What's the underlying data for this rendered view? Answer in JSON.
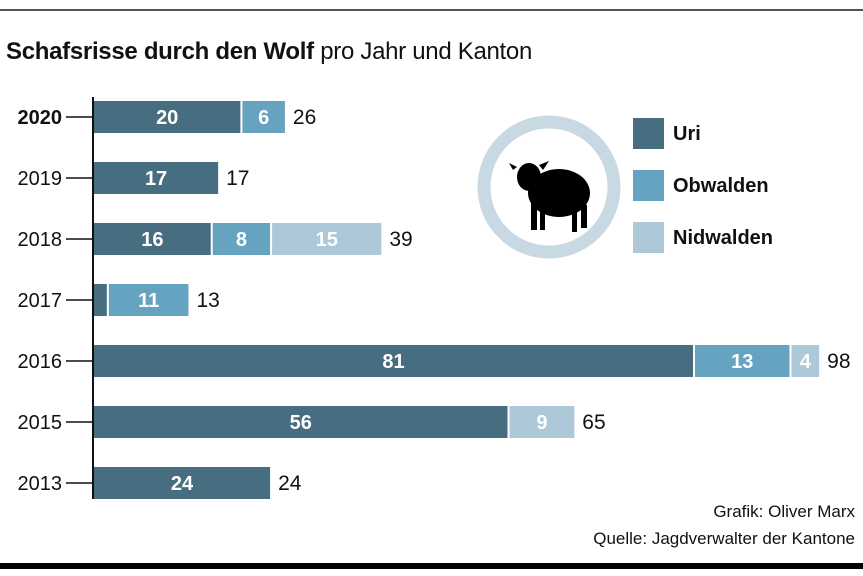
{
  "title": {
    "bold": "Schafsrisse durch den Wolf",
    "light": "pro Jahr und Kanton"
  },
  "legend": [
    {
      "name": "Uri",
      "color": "#476e80"
    },
    {
      "name": "Obwalden",
      "color": "#66a3c1"
    },
    {
      "name": "Nidwalden",
      "color": "#adc8d9"
    }
  ],
  "icon": "sheep-icon",
  "credits": {
    "grafik": "Grafik: Oliver Marx",
    "quelle": "Quelle: Jagdverwalter der Kantone"
  },
  "chart_data": {
    "type": "bar",
    "orientation": "horizontal",
    "stacked": true,
    "title": "Schafsrisse durch den Wolf pro Jahr und Kanton",
    "xlabel": "",
    "ylabel": "",
    "xlim": [
      0,
      98
    ],
    "grid": false,
    "legend_position": "top-right",
    "categories": [
      "2020",
      "2019",
      "2018",
      "2017",
      "2016",
      "2015",
      "2013"
    ],
    "highlight_category": "2020",
    "series": [
      {
        "name": "Uri",
        "values": [
          20,
          17,
          16,
          2,
          81,
          56,
          24
        ],
        "labels": [
          "20",
          "17",
          "16",
          "",
          "81",
          "56",
          "24"
        ]
      },
      {
        "name": "Obwalden",
        "values": [
          6,
          0,
          8,
          11,
          13,
          0,
          0
        ],
        "labels": [
          "6",
          "",
          "8",
          "11",
          "13",
          "",
          ""
        ]
      },
      {
        "name": "Nidwalden",
        "values": [
          0,
          0,
          15,
          0,
          4,
          9,
          0
        ],
        "labels": [
          "",
          "",
          "15",
          "",
          "4",
          "9",
          ""
        ]
      }
    ],
    "totals": [
      26,
      17,
      39,
      13,
      98,
      65,
      24
    ]
  }
}
